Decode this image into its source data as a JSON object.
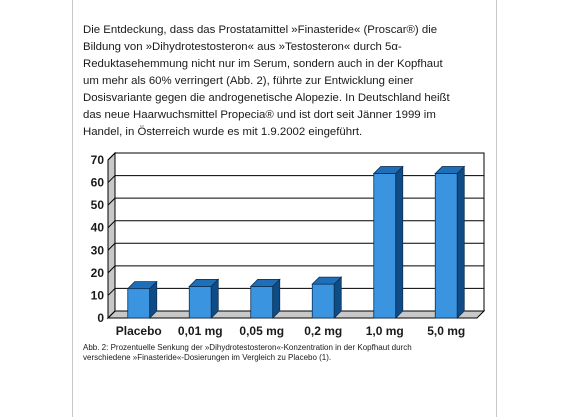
{
  "text": {
    "lines": [
      "Die Entdeckung, dass das Prostatamittel »Finasteride« (Proscar®) die",
      "Bildung von »Dihydrotestosteron« aus »Testosteron« durch 5α-",
      "Reduktasehemmung nicht nur im Serum, sondern auch in der Kopfhaut",
      "um mehr als 60% verringert (Abb. 2), führte zur Entwicklung einer",
      "Dosisvariante gegen die androgenetische Alopezie. In Deutschland heißt",
      "das neue Haarwuchsmittel Propecia® und ist dort seit Jänner 1999 im",
      "Handel, in Österreich wurde es mit 1.9.2002 eingeführt."
    ]
  },
  "caption": {
    "lines": [
      "Abb. 2: Prozentuelle Senkung der »Dihydrotestosteron«-Konzentration in der Kopfhaut durch",
      "verschiedene »Finasteride«-Dosierungen im Vergleich zu Placebo (1)."
    ]
  },
  "chart_data": {
    "type": "bar",
    "categories": [
      "Placebo",
      "0,01 mg",
      "0,05 mg",
      "0,2 mg",
      "1,0 mg",
      "5,0 mg"
    ],
    "values": [
      13,
      14,
      14,
      15,
      64,
      64
    ],
    "y_ticks": [
      "0",
      "10",
      "20",
      "30",
      "40",
      "50",
      "60",
      "70"
    ],
    "ylim": [
      0,
      70
    ],
    "grid": true,
    "style": "3d",
    "colors": {
      "bar_front": "#3a94e0",
      "bar_top": "#1f6fb8",
      "bar_side": "#0f4c86",
      "grid": "#000000",
      "wall": "#ffffff",
      "floor": "#c8c8c8"
    }
  }
}
